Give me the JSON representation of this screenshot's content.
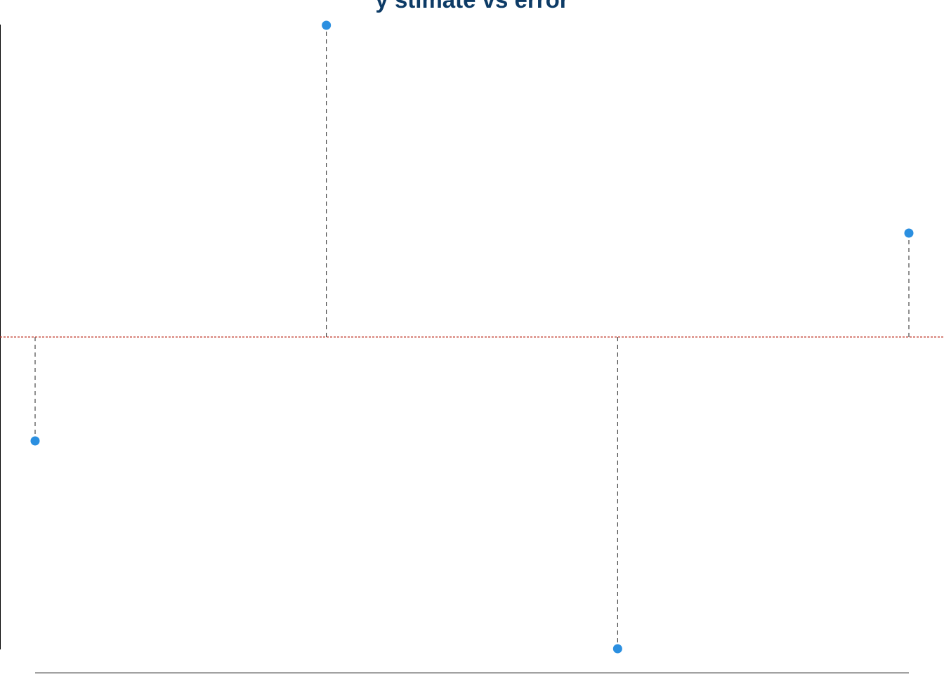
{
  "chart_data": {
    "type": "scatter",
    "title": "y stimate vs error",
    "xlabel": "",
    "ylabel": "",
    "x": [
      1,
      2,
      3,
      4
    ],
    "y": [
      -1,
      3,
      -3,
      1
    ],
    "xlim": [
      1,
      4
    ],
    "ylim": [
      -3,
      3
    ],
    "reference_line_y": 0,
    "point_color": "#2b8fe0",
    "reference_line_color": "#c0392b",
    "stem_color": "#222222",
    "grid": false,
    "legend": "none"
  }
}
